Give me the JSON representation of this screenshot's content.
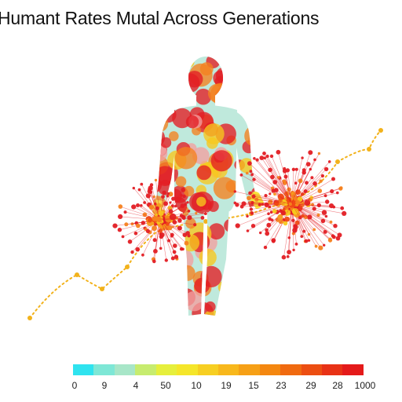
{
  "title": "Humant Rates Mutal Across Generations",
  "legend": {
    "colors": [
      "#2fe3ef",
      "#7ee7d6",
      "#a8e6c8",
      "#c7ec6f",
      "#e6ef3c",
      "#f5e62a",
      "#f7cf22",
      "#f8b81c",
      "#f6a016",
      "#f48710",
      "#f06a10",
      "#ec4e12",
      "#e83216",
      "#e41a1a"
    ],
    "labels": [
      "0",
      "9",
      "4",
      "50",
      "10",
      "19",
      "15",
      "23",
      "29",
      "28",
      "1000"
    ]
  },
  "palette": {
    "body_tint": "#bfe9dc",
    "red": "#e31e24",
    "orange": "#f5821f",
    "yellow": "#f7c81e",
    "dotted_line": "#f2b21b"
  }
}
